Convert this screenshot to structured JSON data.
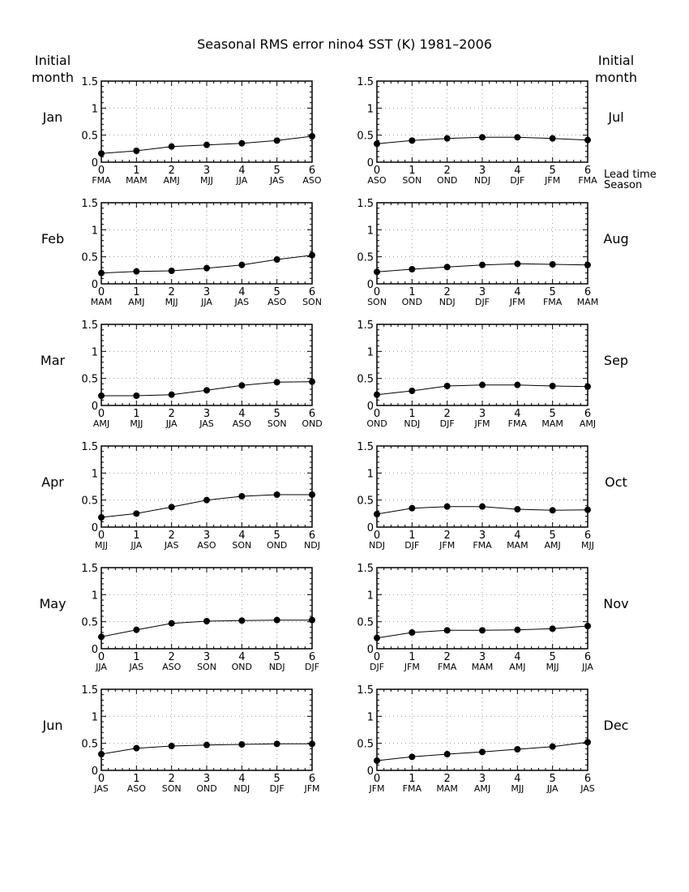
{
  "figure": {
    "title": "Seasonal RMS error    nino4 SST (K)    1981–2006",
    "left_heading": [
      "Initial",
      "month"
    ],
    "right_heading": [
      "Initial",
      "month"
    ],
    "lead_time_label": "Lead time",
    "season_label": "Season"
  },
  "chart_data": [
    {
      "type": "line",
      "month": "Jan",
      "x": [
        0,
        1,
        2,
        3,
        4,
        5,
        6
      ],
      "seasons": [
        "FMA",
        "MAM",
        "AMJ",
        "MJJ",
        "JJA",
        "JAS",
        "ASO"
      ],
      "values": [
        0.16,
        0.21,
        0.29,
        0.32,
        0.35,
        0.4,
        0.48
      ],
      "ylim": [
        0,
        1.5
      ],
      "yticks": [
        "0",
        "0.5",
        "1",
        "1.5"
      ],
      "grid": true
    },
    {
      "type": "line",
      "month": "Jul",
      "x": [
        0,
        1,
        2,
        3,
        4,
        5,
        6
      ],
      "seasons": [
        "ASO",
        "SON",
        "OND",
        "NDJ",
        "DJF",
        "JFM",
        "FMA"
      ],
      "values": [
        0.34,
        0.4,
        0.44,
        0.46,
        0.46,
        0.44,
        0.41
      ],
      "ylim": [
        0,
        1.5
      ],
      "yticks": [
        "0",
        "0.5",
        "1",
        "1.5"
      ],
      "grid": true
    },
    {
      "type": "line",
      "month": "Feb",
      "x": [
        0,
        1,
        2,
        3,
        4,
        5,
        6
      ],
      "seasons": [
        "MAM",
        "AMJ",
        "MJJ",
        "JJA",
        "JAS",
        "ASO",
        "SON"
      ],
      "values": [
        0.2,
        0.23,
        0.24,
        0.29,
        0.35,
        0.45,
        0.53
      ],
      "ylim": [
        0,
        1.5
      ],
      "yticks": [
        "0",
        "0.5",
        "1",
        "1.5"
      ],
      "grid": true
    },
    {
      "type": "line",
      "month": "Aug",
      "x": [
        0,
        1,
        2,
        3,
        4,
        5,
        6
      ],
      "seasons": [
        "SON",
        "OND",
        "NDJ",
        "DJF",
        "JFM",
        "FMA",
        "MAM"
      ],
      "values": [
        0.22,
        0.27,
        0.31,
        0.35,
        0.37,
        0.36,
        0.35
      ],
      "ylim": [
        0,
        1.5
      ],
      "yticks": [
        "0",
        "0.5",
        "1",
        "1.5"
      ],
      "grid": true
    },
    {
      "type": "line",
      "month": "Mar",
      "x": [
        0,
        1,
        2,
        3,
        4,
        5,
        6
      ],
      "seasons": [
        "AMJ",
        "MJJ",
        "JJA",
        "JAS",
        "ASO",
        "SON",
        "OND"
      ],
      "values": [
        0.18,
        0.18,
        0.2,
        0.28,
        0.37,
        0.43,
        0.44
      ],
      "ylim": [
        0,
        1.5
      ],
      "yticks": [
        "0",
        "0.5",
        "1",
        "1.5"
      ],
      "grid": true
    },
    {
      "type": "line",
      "month": "Sep",
      "x": [
        0,
        1,
        2,
        3,
        4,
        5,
        6
      ],
      "seasons": [
        "OND",
        "NDJ",
        "DJF",
        "JFM",
        "FMA",
        "MAM",
        "AMJ"
      ],
      "values": [
        0.2,
        0.27,
        0.36,
        0.38,
        0.38,
        0.36,
        0.35
      ],
      "ylim": [
        0,
        1.5
      ],
      "yticks": [
        "0",
        "0.5",
        "1",
        "1.5"
      ],
      "grid": true
    },
    {
      "type": "line",
      "month": "Apr",
      "x": [
        0,
        1,
        2,
        3,
        4,
        5,
        6
      ],
      "seasons": [
        "MJJ",
        "JJA",
        "JAS",
        "ASO",
        "SON",
        "OND",
        "NDJ"
      ],
      "values": [
        0.18,
        0.25,
        0.37,
        0.5,
        0.57,
        0.6,
        0.6
      ],
      "ylim": [
        0,
        1.5
      ],
      "yticks": [
        "0",
        "0.5",
        "1",
        "1.5"
      ],
      "grid": true
    },
    {
      "type": "line",
      "month": "Oct",
      "x": [
        0,
        1,
        2,
        3,
        4,
        5,
        6
      ],
      "seasons": [
        "NDJ",
        "DJF",
        "JFM",
        "FMA",
        "MAM",
        "AMJ",
        "MJJ"
      ],
      "values": [
        0.24,
        0.35,
        0.38,
        0.38,
        0.33,
        0.31,
        0.32
      ],
      "ylim": [
        0,
        1.5
      ],
      "yticks": [
        "0",
        "0.5",
        "1",
        "1.5"
      ],
      "grid": true
    },
    {
      "type": "line",
      "month": "May",
      "x": [
        0,
        1,
        2,
        3,
        4,
        5,
        6
      ],
      "seasons": [
        "JJA",
        "JAS",
        "ASO",
        "SON",
        "OND",
        "NDJ",
        "DJF"
      ],
      "values": [
        0.22,
        0.35,
        0.47,
        0.51,
        0.52,
        0.53,
        0.53
      ],
      "ylim": [
        0,
        1.5
      ],
      "yticks": [
        "0",
        "0.5",
        "1",
        "1.5"
      ],
      "grid": true
    },
    {
      "type": "line",
      "month": "Nov",
      "x": [
        0,
        1,
        2,
        3,
        4,
        5,
        6
      ],
      "seasons": [
        "DJF",
        "JFM",
        "FMA",
        "MAM",
        "AMJ",
        "MJJ",
        "JJA"
      ],
      "values": [
        0.2,
        0.3,
        0.34,
        0.34,
        0.35,
        0.37,
        0.42
      ],
      "ylim": [
        0,
        1.5
      ],
      "yticks": [
        "0",
        "0.5",
        "1",
        "1.5"
      ],
      "grid": true
    },
    {
      "type": "line",
      "month": "Jun",
      "x": [
        0,
        1,
        2,
        3,
        4,
        5,
        6
      ],
      "seasons": [
        "JAS",
        "ASO",
        "SON",
        "OND",
        "NDJ",
        "DJF",
        "JFM"
      ],
      "values": [
        0.3,
        0.41,
        0.45,
        0.47,
        0.48,
        0.49,
        0.49
      ],
      "ylim": [
        0,
        1.5
      ],
      "yticks": [
        "0",
        "0.5",
        "1",
        "1.5"
      ],
      "grid": true
    },
    {
      "type": "line",
      "month": "Dec",
      "x": [
        0,
        1,
        2,
        3,
        4,
        5,
        6
      ],
      "seasons": [
        "JFM",
        "FMA",
        "MAM",
        "AMJ",
        "MJJ",
        "JJA",
        "JAS"
      ],
      "values": [
        0.18,
        0.25,
        0.3,
        0.34,
        0.39,
        0.44,
        0.52
      ],
      "ylim": [
        0,
        1.5
      ],
      "yticks": [
        "0",
        "0.5",
        "1",
        "1.5"
      ],
      "grid": true
    }
  ]
}
